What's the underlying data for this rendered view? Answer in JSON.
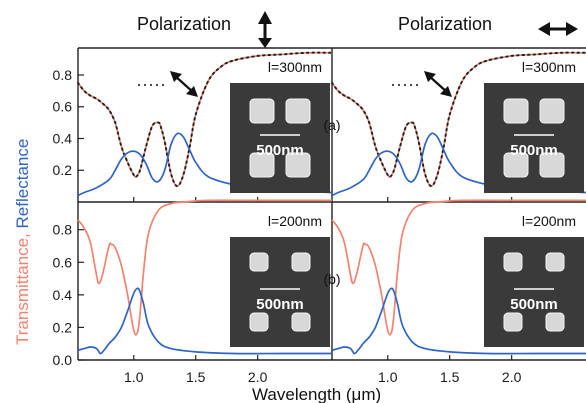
{
  "chart_data": {
    "type": "line",
    "headers": {
      "left": "Polarization",
      "right": "Polarization",
      "left_arrow": "vertical-double-arrow",
      "right_arrow": "horizontal-double-arrow"
    },
    "xlabel": "Wavelength (μm)",
    "ylabel_parts": [
      "Transmittance",
      ", ",
      "Reflectance"
    ],
    "x_ticks": [
      "1.0",
      "1.5",
      "2.0"
    ],
    "xlim": [
      0.55,
      2.6
    ],
    "colors": {
      "transmittance": "#f4826e",
      "reflectance": "#2f64c4",
      "simulation_dots": "#222222"
    },
    "panels": [
      {
        "row": "a",
        "label": "(a)",
        "inset_label": "l=300nm",
        "scale_label": "500nm",
        "y_ticks": [
          "0.8",
          "0.6",
          "0.4",
          "0.2"
        ],
        "ylim": [
          0.0,
          0.97
        ],
        "series": [
          {
            "key": "transmittance",
            "x": [
              0.55,
              0.6,
              0.65,
              0.7,
              0.75,
              0.8,
              0.85,
              0.9,
              0.95,
              1.0,
              1.02,
              1.05,
              1.1,
              1.15,
              1.2,
              1.22,
              1.25,
              1.3,
              1.35,
              1.4,
              1.45,
              1.5,
              1.6,
              1.7,
              1.8,
              2.0,
              2.2,
              2.4,
              2.6
            ],
            "y": [
              0.75,
              0.7,
              0.67,
              0.65,
              0.62,
              0.58,
              0.5,
              0.35,
              0.25,
              0.17,
              0.16,
              0.2,
              0.35,
              0.48,
              0.5,
              0.47,
              0.38,
              0.18,
              0.1,
              0.17,
              0.34,
              0.55,
              0.76,
              0.85,
              0.89,
              0.92,
              0.93,
              0.94,
              0.94
            ]
          },
          {
            "key": "reflectance",
            "x": [
              0.55,
              0.6,
              0.7,
              0.8,
              0.85,
              0.9,
              0.95,
              1.0,
              1.05,
              1.1,
              1.15,
              1.2,
              1.25,
              1.3,
              1.35,
              1.4,
              1.45,
              1.5,
              1.6,
              1.8,
              2.0,
              2.3,
              2.6
            ],
            "y": [
              0.04,
              0.06,
              0.09,
              0.14,
              0.2,
              0.27,
              0.31,
              0.32,
              0.3,
              0.24,
              0.15,
              0.13,
              0.2,
              0.36,
              0.43,
              0.41,
              0.33,
              0.25,
              0.16,
              0.11,
              0.09,
              0.07,
              0.06
            ]
          }
        ]
      },
      {
        "row": "b",
        "label": "(b)",
        "inset_label": "l=200nm",
        "scale_label": "500nm",
        "y_ticks": [
          "0.8",
          "0.6",
          "0.4",
          "0.2",
          "0.0"
        ],
        "ylim": [
          0.0,
          0.97
        ],
        "series": [
          {
            "key": "transmittance",
            "x": [
              0.55,
              0.6,
              0.65,
              0.7,
              0.72,
              0.75,
              0.8,
              0.82,
              0.85,
              0.9,
              0.95,
              1.0,
              1.03,
              1.05,
              1.08,
              1.12,
              1.2,
              1.3,
              1.4,
              1.6,
              2.0,
              2.6
            ],
            "y": [
              0.86,
              0.81,
              0.72,
              0.52,
              0.47,
              0.53,
              0.7,
              0.71,
              0.69,
              0.58,
              0.4,
              0.18,
              0.17,
              0.28,
              0.55,
              0.78,
              0.92,
              0.96,
              0.97,
              0.98,
              0.98,
              0.98
            ]
          },
          {
            "key": "reflectance",
            "x": [
              0.55,
              0.6,
              0.65,
              0.7,
              0.73,
              0.76,
              0.8,
              0.85,
              0.9,
              0.95,
              1.0,
              1.03,
              1.05,
              1.08,
              1.12,
              1.2,
              1.3,
              1.5,
              1.8,
              2.2,
              2.6
            ],
            "y": [
              0.06,
              0.07,
              0.08,
              0.07,
              0.04,
              0.06,
              0.1,
              0.14,
              0.2,
              0.3,
              0.41,
              0.44,
              0.42,
              0.34,
              0.21,
              0.11,
              0.07,
              0.05,
              0.04,
              0.04,
              0.04
            ]
          }
        ]
      }
    ]
  }
}
